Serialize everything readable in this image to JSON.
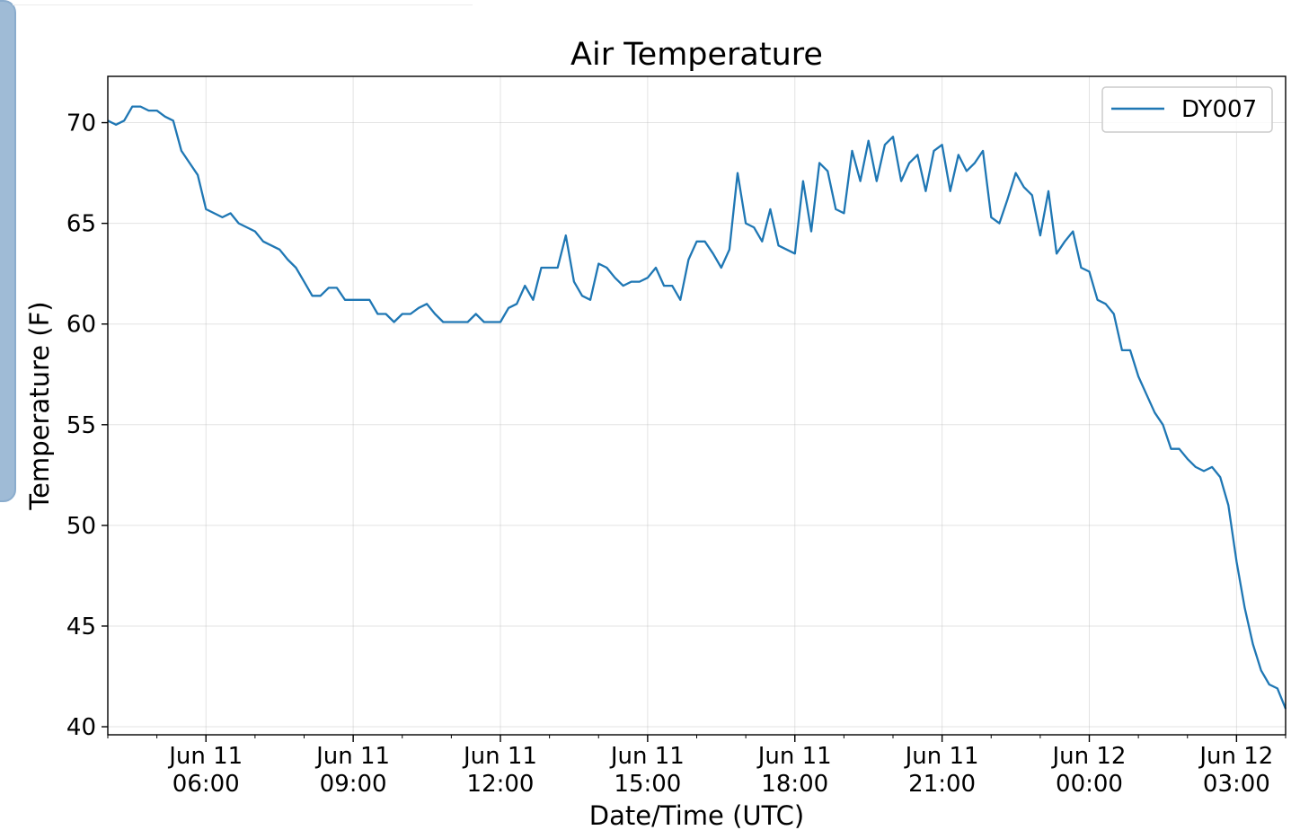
{
  "chart_data": {
    "type": "line",
    "title": "Air Temperature",
    "xlabel": "Date/Time (UTC)",
    "ylabel": "Temperature (F)",
    "ylim": [
      39.6,
      72.3
    ],
    "xlim": [
      "2018-06-11T04:00",
      "2018-06-12T04:00"
    ],
    "yticks": [
      40,
      45,
      50,
      55,
      60,
      65,
      70
    ],
    "xticks": [
      {
        "t": "2018-06-11T06:00",
        "line1": "Jun 11",
        "line2": "06:00"
      },
      {
        "t": "2018-06-11T09:00",
        "line1": "Jun 11",
        "line2": "09:00"
      },
      {
        "t": "2018-06-11T12:00",
        "line1": "Jun 11",
        "line2": "12:00"
      },
      {
        "t": "2018-06-11T15:00",
        "line1": "Jun 11",
        "line2": "15:00"
      },
      {
        "t": "2018-06-11T18:00",
        "line1": "Jun 11",
        "line2": "18:00"
      },
      {
        "t": "2018-06-11T21:00",
        "line1": "Jun 11",
        "line2": "21:00"
      },
      {
        "t": "2018-06-12T00:00",
        "line1": "Jun 12",
        "line2": "00:00"
      },
      {
        "t": "2018-06-12T03:00",
        "line1": "Jun 12",
        "line2": "03:00"
      }
    ],
    "grid": true,
    "legend_position": "top-right",
    "series": [
      {
        "name": "DY007",
        "color": "#1f77b4",
        "x": [
          "2018-06-11T04:00",
          "2018-06-11T04:10",
          "2018-06-11T04:20",
          "2018-06-11T04:30",
          "2018-06-11T04:40",
          "2018-06-11T04:50",
          "2018-06-11T05:00",
          "2018-06-11T05:10",
          "2018-06-11T05:20",
          "2018-06-11T05:30",
          "2018-06-11T05:40",
          "2018-06-11T05:50",
          "2018-06-11T06:00",
          "2018-06-11T06:10",
          "2018-06-11T06:20",
          "2018-06-11T06:30",
          "2018-06-11T06:40",
          "2018-06-11T06:50",
          "2018-06-11T07:00",
          "2018-06-11T07:10",
          "2018-06-11T07:20",
          "2018-06-11T07:30",
          "2018-06-11T07:40",
          "2018-06-11T07:50",
          "2018-06-11T08:00",
          "2018-06-11T08:10",
          "2018-06-11T08:20",
          "2018-06-11T08:30",
          "2018-06-11T08:40",
          "2018-06-11T08:50",
          "2018-06-11T09:00",
          "2018-06-11T09:10",
          "2018-06-11T09:20",
          "2018-06-11T09:30",
          "2018-06-11T09:40",
          "2018-06-11T09:50",
          "2018-06-11T10:00",
          "2018-06-11T10:10",
          "2018-06-11T10:20",
          "2018-06-11T10:30",
          "2018-06-11T10:40",
          "2018-06-11T10:50",
          "2018-06-11T11:00",
          "2018-06-11T11:10",
          "2018-06-11T11:20",
          "2018-06-11T11:30",
          "2018-06-11T11:40",
          "2018-06-11T11:50",
          "2018-06-11T12:00",
          "2018-06-11T12:10",
          "2018-06-11T12:20",
          "2018-06-11T12:30",
          "2018-06-11T12:40",
          "2018-06-11T12:50",
          "2018-06-11T13:00",
          "2018-06-11T13:10",
          "2018-06-11T13:20",
          "2018-06-11T13:30",
          "2018-06-11T13:40",
          "2018-06-11T13:50",
          "2018-06-11T14:00",
          "2018-06-11T14:10",
          "2018-06-11T14:20",
          "2018-06-11T14:30",
          "2018-06-11T14:40",
          "2018-06-11T14:50",
          "2018-06-11T15:00",
          "2018-06-11T15:10",
          "2018-06-11T15:20",
          "2018-06-11T15:30",
          "2018-06-11T15:40",
          "2018-06-11T15:50",
          "2018-06-11T16:00",
          "2018-06-11T16:10",
          "2018-06-11T16:20",
          "2018-06-11T16:30",
          "2018-06-11T16:40",
          "2018-06-11T16:50",
          "2018-06-11T17:00",
          "2018-06-11T17:10",
          "2018-06-11T17:20",
          "2018-06-11T17:30",
          "2018-06-11T17:40",
          "2018-06-11T17:50",
          "2018-06-11T18:00",
          "2018-06-11T18:10",
          "2018-06-11T18:20",
          "2018-06-11T18:30",
          "2018-06-11T18:40",
          "2018-06-11T18:50",
          "2018-06-11T19:00",
          "2018-06-11T19:10",
          "2018-06-11T19:20",
          "2018-06-11T19:30",
          "2018-06-11T19:40",
          "2018-06-11T19:50",
          "2018-06-11T20:00",
          "2018-06-11T20:10",
          "2018-06-11T20:20",
          "2018-06-11T20:30",
          "2018-06-11T20:40",
          "2018-06-11T20:50",
          "2018-06-11T21:00",
          "2018-06-11T21:10",
          "2018-06-11T21:20",
          "2018-06-11T21:30",
          "2018-06-11T21:40",
          "2018-06-11T21:50",
          "2018-06-11T22:00",
          "2018-06-11T22:10",
          "2018-06-11T22:20",
          "2018-06-11T22:30",
          "2018-06-11T22:40",
          "2018-06-11T22:50",
          "2018-06-11T23:00",
          "2018-06-11T23:10",
          "2018-06-11T23:20",
          "2018-06-11T23:30",
          "2018-06-11T23:40",
          "2018-06-11T23:50",
          "2018-06-12T00:00",
          "2018-06-12T00:10",
          "2018-06-12T00:20",
          "2018-06-12T00:30",
          "2018-06-12T00:40",
          "2018-06-12T00:50",
          "2018-06-12T01:00",
          "2018-06-12T01:10",
          "2018-06-12T01:20",
          "2018-06-12T01:30",
          "2018-06-12T01:40",
          "2018-06-12T01:50",
          "2018-06-12T02:00",
          "2018-06-12T02:10",
          "2018-06-12T02:20",
          "2018-06-12T02:30",
          "2018-06-12T02:40",
          "2018-06-12T02:50",
          "2018-06-12T03:00",
          "2018-06-12T03:10",
          "2018-06-12T03:20",
          "2018-06-12T03:30",
          "2018-06-12T03:40",
          "2018-06-12T03:50",
          "2018-06-12T04:00"
        ],
        "y": [
          70.1,
          69.9,
          70.1,
          70.8,
          70.8,
          70.6,
          70.6,
          70.3,
          70.1,
          68.6,
          68.0,
          67.4,
          65.7,
          65.5,
          65.3,
          65.5,
          65.0,
          64.8,
          64.6,
          64.1,
          63.9,
          63.7,
          63.2,
          62.8,
          62.1,
          61.4,
          61.4,
          61.8,
          61.8,
          61.2,
          61.2,
          61.2,
          61.2,
          60.5,
          60.5,
          60.1,
          60.5,
          60.5,
          60.8,
          61.0,
          60.5,
          60.1,
          60.1,
          60.1,
          60.1,
          60.5,
          60.1,
          60.1,
          60.1,
          60.8,
          61.0,
          61.9,
          61.2,
          62.8,
          62.8,
          62.8,
          64.4,
          62.1,
          61.4,
          61.2,
          63.0,
          62.8,
          62.3,
          61.9,
          62.1,
          62.1,
          62.3,
          62.8,
          61.9,
          61.9,
          61.2,
          63.2,
          64.1,
          64.1,
          63.5,
          62.8,
          63.7,
          67.5,
          65.0,
          64.8,
          64.1,
          65.7,
          63.9,
          63.7,
          63.5,
          67.1,
          64.6,
          68.0,
          67.6,
          65.7,
          65.5,
          68.6,
          67.1,
          69.1,
          67.1,
          68.9,
          69.3,
          67.1,
          68.0,
          68.4,
          66.6,
          68.6,
          68.9,
          66.6,
          68.4,
          67.6,
          68.0,
          68.6,
          65.3,
          65.0,
          66.2,
          67.5,
          66.8,
          66.4,
          64.4,
          66.6,
          63.5,
          64.1,
          64.6,
          62.8,
          62.6,
          61.2,
          61.0,
          60.5,
          58.7,
          58.7,
          57.4,
          56.5,
          55.6,
          55.0,
          53.8,
          53.8,
          53.3,
          52.9,
          52.7,
          52.9,
          52.4,
          51.0,
          48.2,
          45.9,
          44.1,
          42.8,
          42.1,
          41.9,
          40.9
        ]
      }
    ]
  }
}
